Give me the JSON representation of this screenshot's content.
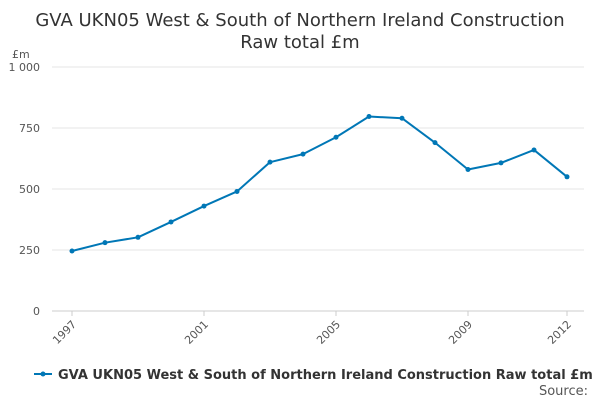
{
  "chart_data": {
    "type": "line",
    "title_lines": [
      "GVA UKN05 West & South of Northern Ireland Construction",
      "Raw total £m"
    ],
    "unit_label": "£m",
    "y_ticks": [
      0,
      250,
      500,
      750,
      1000
    ],
    "y_tick_labels": [
      "0",
      "250",
      "500",
      "750",
      "1 000"
    ],
    "ylim": [
      0,
      1000
    ],
    "xlim": [
      1997,
      2012
    ],
    "x_tick_labels": [
      "1997",
      "2001",
      "2005",
      "2009",
      "2012"
    ],
    "x": [
      1997,
      1998,
      1999,
      2000,
      2001,
      2002,
      2003,
      2004,
      2005,
      2006,
      2007,
      2008,
      2009,
      2010,
      2011,
      2012
    ],
    "series": [
      {
        "name": "GVA UKN05 West & South of Northern Ireland Construction Raw total £m",
        "color": "#0077b6",
        "values": [
          246,
          280,
          302,
          365,
          430,
          490,
          610,
          643,
          712,
          797,
          790,
          690,
          580,
          607,
          660,
          550
        ]
      }
    ],
    "grid": true,
    "legend_position": "bottom-left",
    "source_label": "Source:"
  }
}
